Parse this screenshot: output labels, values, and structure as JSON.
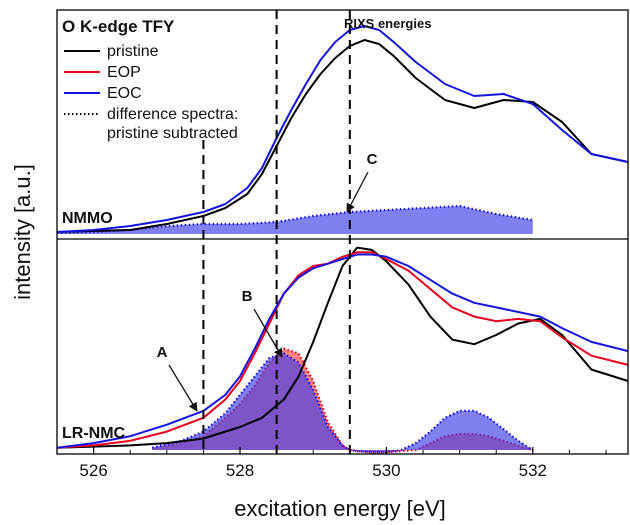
{
  "chart_data": {
    "type": "line",
    "xlabel": "excitation energy [eV]",
    "ylabel": "intensity [a.u.]",
    "xlim": [
      525.5,
      533.3
    ],
    "xticks": [
      "526",
      "528",
      "530",
      "532"
    ],
    "legend": {
      "title": "O K-edge TFY",
      "placement": "top-left",
      "entries": [
        {
          "label": "pristine",
          "color": "#000000",
          "style": "solid"
        },
        {
          "label": "EOP",
          "color": "#e8001c",
          "style": "solid"
        },
        {
          "label": "EOC",
          "color": "#1414e0",
          "style": "solid"
        },
        {
          "label": "difference spectra:",
          "label2": "pristine subtracted",
          "color": "#000000",
          "style": "dotted"
        }
      ]
    },
    "rixs_label": "RIXS energies",
    "rixs_energies": [
      527.5,
      528.5,
      529.5
    ],
    "panels": [
      {
        "label": "NMMO",
        "series": [
          {
            "name": "pristine",
            "color": "#000000",
            "x": [
              525.5,
              526,
              526.5,
              527,
              527.5,
              527.8,
              528.1,
              528.3,
              528.5,
              528.7,
              528.9,
              529.1,
              529.3,
              529.5,
              529.7,
              529.9,
              530.1,
              530.4,
              530.8,
              531.2,
              531.6,
              532,
              532.4,
              532.8,
              533.3
            ],
            "y": [
              0.01,
              0.015,
              0.02,
              0.05,
              0.09,
              0.13,
              0.2,
              0.3,
              0.44,
              0.58,
              0.7,
              0.8,
              0.88,
              0.94,
              0.97,
              0.95,
              0.89,
              0.78,
              0.67,
              0.63,
              0.67,
              0.66,
              0.56,
              0.4,
              0.36
            ]
          },
          {
            "name": "EOC",
            "color": "#1414e0",
            "x": [
              525.5,
              526,
              526.5,
              527,
              527.5,
              527.8,
              528.1,
              528.3,
              528.5,
              528.7,
              528.9,
              529.1,
              529.3,
              529.5,
              529.7,
              529.9,
              530.1,
              530.4,
              530.8,
              531.2,
              531.6,
              532,
              532.4,
              532.8,
              533.3
            ],
            "y": [
              0.01,
              0.02,
              0.04,
              0.07,
              0.11,
              0.15,
              0.23,
              0.33,
              0.48,
              0.62,
              0.75,
              0.87,
              0.96,
              1.02,
              1.04,
              1.02,
              0.96,
              0.86,
              0.75,
              0.69,
              0.7,
              0.65,
              0.52,
              0.4,
              0.36
            ]
          }
        ],
        "difference": {
          "name": "EOC",
          "color": "#1414e0",
          "x": [
            525.5,
            526,
            526.5,
            527,
            527.5,
            528,
            528.5,
            529,
            529.5,
            530,
            530.5,
            531,
            531.5,
            532
          ],
          "y": [
            0.005,
            0.01,
            0.02,
            0.04,
            0.05,
            0.05,
            0.06,
            0.09,
            0.11,
            0.12,
            0.13,
            0.14,
            0.1,
            0.07
          ]
        }
      },
      {
        "label": "LR-NMC",
        "series": [
          {
            "name": "pristine",
            "color": "#000000",
            "x": [
              525.5,
              526,
              526.5,
              527,
              527.5,
              528,
              528.3,
              528.6,
              528.8,
              529,
              529.2,
              529.4,
              529.6,
              529.8,
              530,
              530.3,
              530.6,
              530.9,
              531.2,
              531.5,
              531.8,
              532.1,
              532.4,
              532.8,
              533.3
            ],
            "y": [
              0.01,
              0.015,
              0.02,
              0.03,
              0.05,
              0.1,
              0.14,
              0.22,
              0.32,
              0.47,
              0.64,
              0.8,
              0.88,
              0.87,
              0.82,
              0.72,
              0.58,
              0.48,
              0.46,
              0.5,
              0.55,
              0.57,
              0.5,
              0.35,
              0.3
            ]
          },
          {
            "name": "EOP",
            "color": "#e8001c",
            "x": [
              525.5,
              526,
              526.5,
              527,
              527.5,
              527.8,
              528,
              528.2,
              528.4,
              528.6,
              528.8,
              529,
              529.2,
              529.4,
              529.6,
              529.8,
              530,
              530.3,
              530.6,
              530.9,
              531.2,
              531.5,
              531.8,
              532.1,
              532.4,
              532.8,
              533.3
            ],
            "y": [
              0.01,
              0.02,
              0.04,
              0.08,
              0.14,
              0.22,
              0.3,
              0.42,
              0.55,
              0.68,
              0.76,
              0.8,
              0.81,
              0.84,
              0.86,
              0.86,
              0.83,
              0.78,
              0.7,
              0.62,
              0.58,
              0.56,
              0.57,
              0.56,
              0.49,
              0.41,
              0.37
            ]
          },
          {
            "name": "EOC",
            "color": "#1414e0",
            "x": [
              525.5,
              526,
              526.5,
              527,
              527.5,
              527.8,
              528,
              528.2,
              528.4,
              528.6,
              528.8,
              529,
              529.2,
              529.4,
              529.6,
              529.8,
              530,
              530.3,
              530.6,
              530.9,
              531.2,
              531.5,
              531.8,
              532.1,
              532.4,
              532.8,
              533.3
            ],
            "y": [
              0.01,
              0.03,
              0.06,
              0.11,
              0.17,
              0.24,
              0.32,
              0.44,
              0.57,
              0.68,
              0.75,
              0.79,
              0.81,
              0.83,
              0.85,
              0.85,
              0.84,
              0.8,
              0.74,
              0.68,
              0.64,
              0.62,
              0.6,
              0.58,
              0.53,
              0.47,
              0.43
            ]
          }
        ],
        "differences": [
          {
            "name": "EOP",
            "color": "#e8001c",
            "x": [
              526.8,
              527.2,
              527.5,
              527.8,
              528,
              528.2,
              528.4,
              528.6,
              528.8,
              529,
              529.2,
              529.4,
              529.5,
              529.6,
              529.8,
              530,
              530.2,
              530.4,
              530.6,
              530.8,
              531,
              531.2,
              531.4,
              531.6,
              531.8,
              532
            ],
            "y": [
              0.01,
              0.03,
              0.06,
              0.14,
              0.2,
              0.28,
              0.38,
              0.44,
              0.42,
              0.3,
              0.12,
              0.02,
              0.0,
              -0.005,
              -0.01,
              -0.01,
              -0.005,
              0.0,
              0.03,
              0.06,
              0.07,
              0.07,
              0.06,
              0.04,
              0.02,
              0.0
            ]
          },
          {
            "name": "EOC",
            "color": "#1414e0",
            "x": [
              526.8,
              527.2,
              527.5,
              527.8,
              528,
              528.2,
              528.4,
              528.6,
              528.8,
              529,
              529.2,
              529.4,
              529.5,
              529.6,
              529.8,
              530,
              530.2,
              530.4,
              530.6,
              530.8,
              531,
              531.2,
              531.4,
              531.6,
              531.8,
              532
            ],
            "y": [
              0.01,
              0.04,
              0.08,
              0.16,
              0.24,
              0.32,
              0.4,
              0.42,
              0.38,
              0.26,
              0.1,
              0.02,
              0.0,
              -0.005,
              -0.01,
              -0.01,
              0.0,
              0.03,
              0.08,
              0.14,
              0.17,
              0.17,
              0.14,
              0.09,
              0.04,
              0.0
            ]
          }
        ]
      }
    ],
    "annotations": [
      {
        "text": "A",
        "x": 527.5
      },
      {
        "text": "B",
        "x": 528.5
      },
      {
        "text": "C",
        "x": 529.5
      }
    ]
  }
}
